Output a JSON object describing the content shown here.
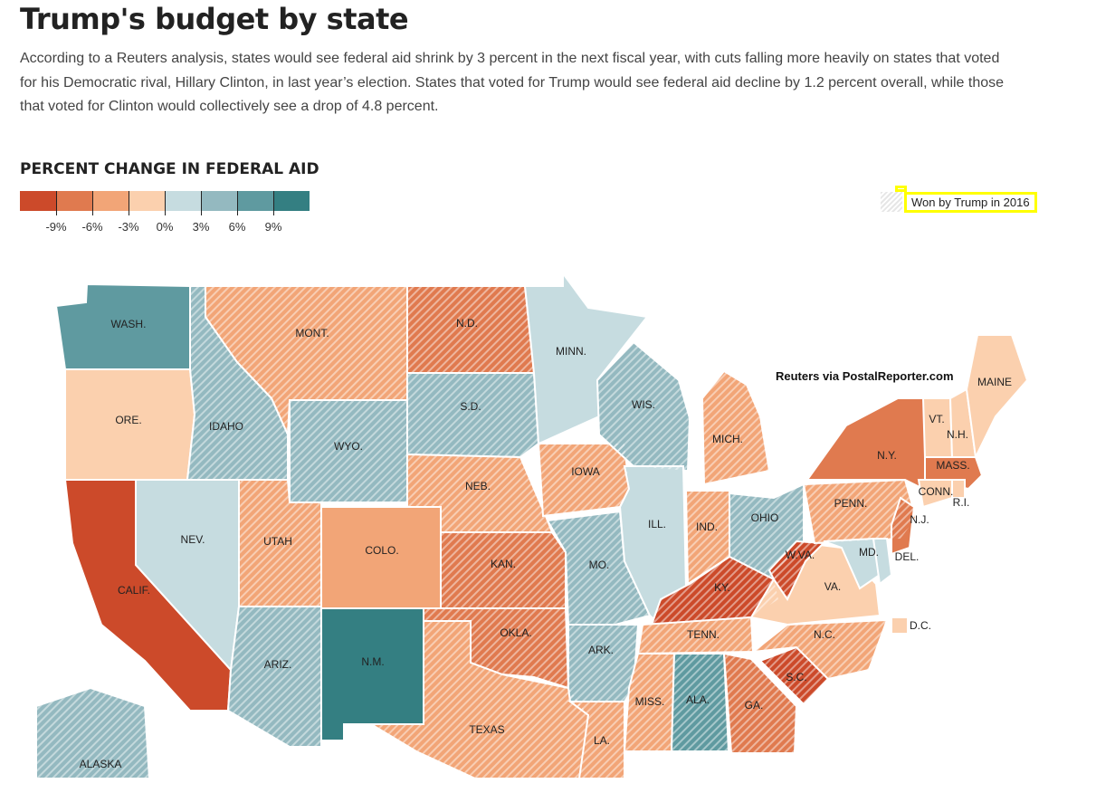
{
  "header": {
    "title": "Trump's budget by state",
    "intro": "According to a Reuters analysis, states would see federal aid shrink by 3 percent in the next fiscal year, with cuts falling more heavily on states that voted for his Democratic rival, Hillary Clinton, in last year’s election. States that voted for Trump would see federal aid decline by 1.2 percent overall, while those that voted for Clinton would collectively see a drop of 4.8 percent."
  },
  "legend": {
    "title": "PERCENT CHANGE IN FEDERAL AID",
    "colors": [
      "#cc4a2a",
      "#e07a4f",
      "#f2a577",
      "#fbd0ae",
      "#c6dce0",
      "#94b9c0",
      "#5f9aa0",
      "#347f82"
    ],
    "ticks": [
      "-9%",
      "-6%",
      "-3%",
      "0%",
      "3%",
      "6%",
      "9%"
    ],
    "won_label": "Won by Trump in 2016"
  },
  "credit": "Reuters via PostalReporter.com",
  "dc_label": "D.C.",
  "dc_color": "#fbd0ae",
  "states": [
    {
      "label": "WASH.",
      "color": "#5f9aa0",
      "trump": false
    },
    {
      "label": "ORE.",
      "color": "#fbd0ae",
      "trump": false
    },
    {
      "label": "CALIF.",
      "color": "#cc4a2a",
      "trump": false
    },
    {
      "label": "IDAHO",
      "color": "#94b9c0",
      "trump": true
    },
    {
      "label": "NEV.",
      "color": "#c6dce0",
      "trump": false
    },
    {
      "label": "MONT.",
      "color": "#f2a577",
      "trump": true
    },
    {
      "label": "WYO.",
      "color": "#94b9c0",
      "trump": true
    },
    {
      "label": "UTAH",
      "color": "#f2a577",
      "trump": true
    },
    {
      "label": "COLO.",
      "color": "#f2a577",
      "trump": false
    },
    {
      "label": "ARIZ.",
      "color": "#94b9c0",
      "trump": true
    },
    {
      "label": "N.M.",
      "color": "#347f82",
      "trump": false
    },
    {
      "label": "N.D.",
      "color": "#e07a4f",
      "trump": true
    },
    {
      "label": "S.D.",
      "color": "#94b9c0",
      "trump": true
    },
    {
      "label": "NEB.",
      "color": "#f2a577",
      "trump": true
    },
    {
      "label": "KAN.",
      "color": "#e07a4f",
      "trump": true
    },
    {
      "label": "OKLA.",
      "color": "#e07a4f",
      "trump": true
    },
    {
      "label": "TEXAS",
      "color": "#f2a577",
      "trump": true
    },
    {
      "label": "MINN.",
      "color": "#c6dce0",
      "trump": false
    },
    {
      "label": "IOWA",
      "color": "#f2a577",
      "trump": true
    },
    {
      "label": "MO.",
      "color": "#94b9c0",
      "trump": true
    },
    {
      "label": "ARK.",
      "color": "#94b9c0",
      "trump": true
    },
    {
      "label": "LA.",
      "color": "#f2a577",
      "trump": true
    },
    {
      "label": "WIS.",
      "color": "#94b9c0",
      "trump": true
    },
    {
      "label": "ILL.",
      "color": "#c6dce0",
      "trump": false
    },
    {
      "label": "MICH.",
      "color": "#f2a577",
      "trump": true
    },
    {
      "label": "IND.",
      "color": "#f2a577",
      "trump": true
    },
    {
      "label": "OHIO",
      "color": "#94b9c0",
      "trump": true
    },
    {
      "label": "KY.",
      "color": "#cc4a2a",
      "trump": true
    },
    {
      "label": "TENN.",
      "color": "#f2a577",
      "trump": true
    },
    {
      "label": "MISS.",
      "color": "#f2a577",
      "trump": true
    },
    {
      "label": "ALA.",
      "color": "#5f9aa0",
      "trump": true
    },
    {
      "label": "GA.",
      "color": "#e07a4f",
      "trump": true
    },
    {
      "label": "S.C.",
      "color": "#cc4a2a",
      "trump": true
    },
    {
      "label": "N.C.",
      "color": "#f2a577",
      "trump": true
    },
    {
      "label": "VA.",
      "color": "#fbd0ae",
      "trump": false
    },
    {
      "label": "W.VA.",
      "color": "#cc4a2a",
      "trump": true
    },
    {
      "label": "PENN.",
      "color": "#f2a577",
      "trump": true
    },
    {
      "label": "N.Y.",
      "color": "#e07a4f",
      "trump": false
    },
    {
      "label": "N.J.",
      "color": "#e07a4f",
      "trump": false
    },
    {
      "label": "MD.",
      "color": "#c6dce0",
      "trump": false
    },
    {
      "label": "DEL.",
      "color": "#c6dce0",
      "trump": false
    },
    {
      "label": "VT.",
      "color": "#fbd0ae",
      "trump": false
    },
    {
      "label": "N.H.",
      "color": "#fbd0ae",
      "trump": false
    },
    {
      "label": "MAINE",
      "color": "#fbd0ae",
      "trump": false
    },
    {
      "label": "MASS.",
      "color": "#e07a4f",
      "trump": false
    },
    {
      "label": "CONN.",
      "color": "#fbd0ae",
      "trump": false
    },
    {
      "label": "R.I.",
      "color": "#fbd0ae",
      "trump": false
    },
    {
      "label": "ALASKA",
      "color": "#94b9c0",
      "trump": true
    }
  ]
}
